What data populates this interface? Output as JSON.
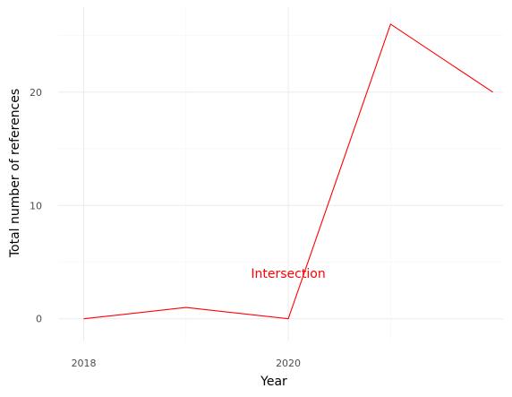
{
  "chart_data": {
    "type": "line",
    "title": "",
    "xlabel": "Year",
    "ylabel": "Total number of references",
    "x": [
      2018,
      2019,
      2020,
      2021,
      2022
    ],
    "series": [
      {
        "values": [
          0,
          1,
          0,
          26,
          20
        ]
      }
    ],
    "xlim": [
      2017.75,
      2022.1
    ],
    "ylim": [
      -2,
      27.5
    ],
    "x_ticks": [
      2018,
      2020
    ],
    "x_tick_labels": [
      "2018",
      "2020"
    ],
    "y_ticks": [
      0,
      10,
      20
    ],
    "y_tick_labels": [
      "0",
      "10",
      "20"
    ],
    "annotations": [
      {
        "text": "Intersection",
        "x": 2020,
        "y": 4,
        "color": "#ff0000"
      }
    ],
    "grid": true,
    "colors": {
      "line": "#ff0000",
      "grid_major": "#ebebeb",
      "grid_minor": "#f5f5f5",
      "annotation": "#ff0000"
    }
  }
}
